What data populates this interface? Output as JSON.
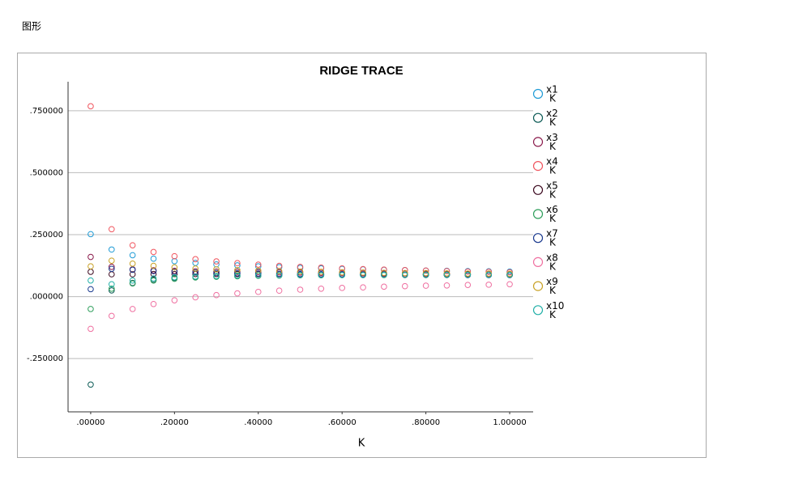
{
  "header": "图形",
  "chart_data": {
    "type": "scatter",
    "title": "RIDGE TRACE",
    "x_label": "K",
    "legend_sublabel": "K",
    "x": [
      0,
      0.05,
      0.1,
      0.15,
      0.2,
      0.25,
      0.3,
      0.35,
      0.4,
      0.45,
      0.5,
      0.55,
      0.6,
      0.65,
      0.7,
      0.75,
      0.8,
      0.85,
      0.9,
      0.95,
      1.0
    ],
    "series": [
      {
        "name": "x1",
        "color": "#1f9bd6",
        "values": [
          0.252,
          0.19,
          0.167,
          0.153,
          0.143,
          0.136,
          0.13,
          0.126,
          0.122,
          0.119,
          0.116,
          0.114,
          0.112,
          0.11,
          0.108,
          0.107,
          0.105,
          0.104,
          0.103,
          0.102,
          0.101
        ]
      },
      {
        "name": "x2",
        "color": "#0b5a55",
        "values": [
          -0.355,
          0.025,
          0.055,
          0.068,
          0.075,
          0.079,
          0.082,
          0.084,
          0.085,
          0.086,
          0.087,
          0.087,
          0.088,
          0.088,
          0.088,
          0.088,
          0.088,
          0.088,
          0.088,
          0.088,
          0.088
        ]
      },
      {
        "name": "x3",
        "color": "#8a1a4b",
        "values": [
          0.16,
          0.12,
          0.11,
          0.106,
          0.104,
          0.102,
          0.101,
          0.1,
          0.099,
          0.098,
          0.097,
          0.096,
          0.096,
          0.095,
          0.094,
          0.094,
          0.093,
          0.093,
          0.092,
          0.092,
          0.091
        ]
      },
      {
        "name": "x4",
        "color": "#f0555e",
        "values": [
          0.768,
          0.272,
          0.207,
          0.18,
          0.163,
          0.151,
          0.142,
          0.135,
          0.129,
          0.124,
          0.12,
          0.117,
          0.114,
          0.111,
          0.109,
          0.107,
          0.105,
          0.103,
          0.101,
          0.1,
          0.098
        ]
      },
      {
        "name": "x5",
        "color": "#3d0a20",
        "values": [
          0.1,
          0.09,
          0.09,
          0.091,
          0.091,
          0.091,
          0.091,
          0.091,
          0.091,
          0.091,
          0.09,
          0.09,
          0.09,
          0.09,
          0.09,
          0.089,
          0.089,
          0.089,
          0.089,
          0.088,
          0.088
        ]
      },
      {
        "name": "x6",
        "color": "#2e9e5b",
        "values": [
          -0.05,
          0.032,
          0.053,
          0.065,
          0.072,
          0.077,
          0.08,
          0.082,
          0.084,
          0.085,
          0.086,
          0.086,
          0.087,
          0.087,
          0.087,
          0.087,
          0.087,
          0.087,
          0.087,
          0.087,
          0.087
        ]
      },
      {
        "name": "x7",
        "color": "#1b3a8f",
        "values": [
          0.03,
          0.112,
          0.108,
          0.103,
          0.1,
          0.097,
          0.095,
          0.094,
          0.093,
          0.092,
          0.091,
          0.09,
          0.09,
          0.089,
          0.089,
          0.088,
          0.088,
          0.088,
          0.087,
          0.087,
          0.087
        ]
      },
      {
        "name": "x8",
        "color": "#ef6fa0",
        "values": [
          -0.13,
          -0.078,
          -0.05,
          -0.03,
          -0.015,
          -0.003,
          0.006,
          0.013,
          0.019,
          0.024,
          0.028,
          0.032,
          0.035,
          0.037,
          0.04,
          0.042,
          0.044,
          0.045,
          0.047,
          0.048,
          0.05
        ]
      },
      {
        "name": "x9",
        "color": "#c9a227",
        "values": [
          0.122,
          0.145,
          0.133,
          0.124,
          0.118,
          0.113,
          0.11,
          0.107,
          0.105,
          0.103,
          0.101,
          0.1,
          0.098,
          0.097,
          0.096,
          0.095,
          0.095,
          0.094,
          0.093,
          0.093,
          0.092
        ]
      },
      {
        "name": "x10",
        "color": "#22b0a8",
        "values": [
          0.065,
          0.05,
          0.065,
          0.073,
          0.078,
          0.081,
          0.083,
          0.085,
          0.086,
          0.086,
          0.087,
          0.087,
          0.087,
          0.087,
          0.088,
          0.088,
          0.088,
          0.088,
          0.088,
          0.088,
          0.088
        ]
      }
    ],
    "xlim": [
      -0.054,
      1.056
    ],
    "ylim": [
      -0.465,
      0.867
    ],
    "xticks": [
      {
        "value": 0,
        "label": ".00000"
      },
      {
        "value": 0.2,
        "label": ".20000"
      },
      {
        "value": 0.4,
        "label": ".40000"
      },
      {
        "value": 0.6,
        "label": ".60000"
      },
      {
        "value": 0.8,
        "label": ".80000"
      },
      {
        "value": 1.0,
        "label": "1.00000"
      }
    ],
    "yticks": [
      {
        "value": -0.25,
        "label": "-.250000"
      },
      {
        "value": 0,
        "label": ".000000"
      },
      {
        "value": 0.25,
        "label": ".250000"
      },
      {
        "value": 0.5,
        "label": ".500000"
      },
      {
        "value": 0.75,
        "label": ".750000"
      }
    ],
    "grid": true
  }
}
